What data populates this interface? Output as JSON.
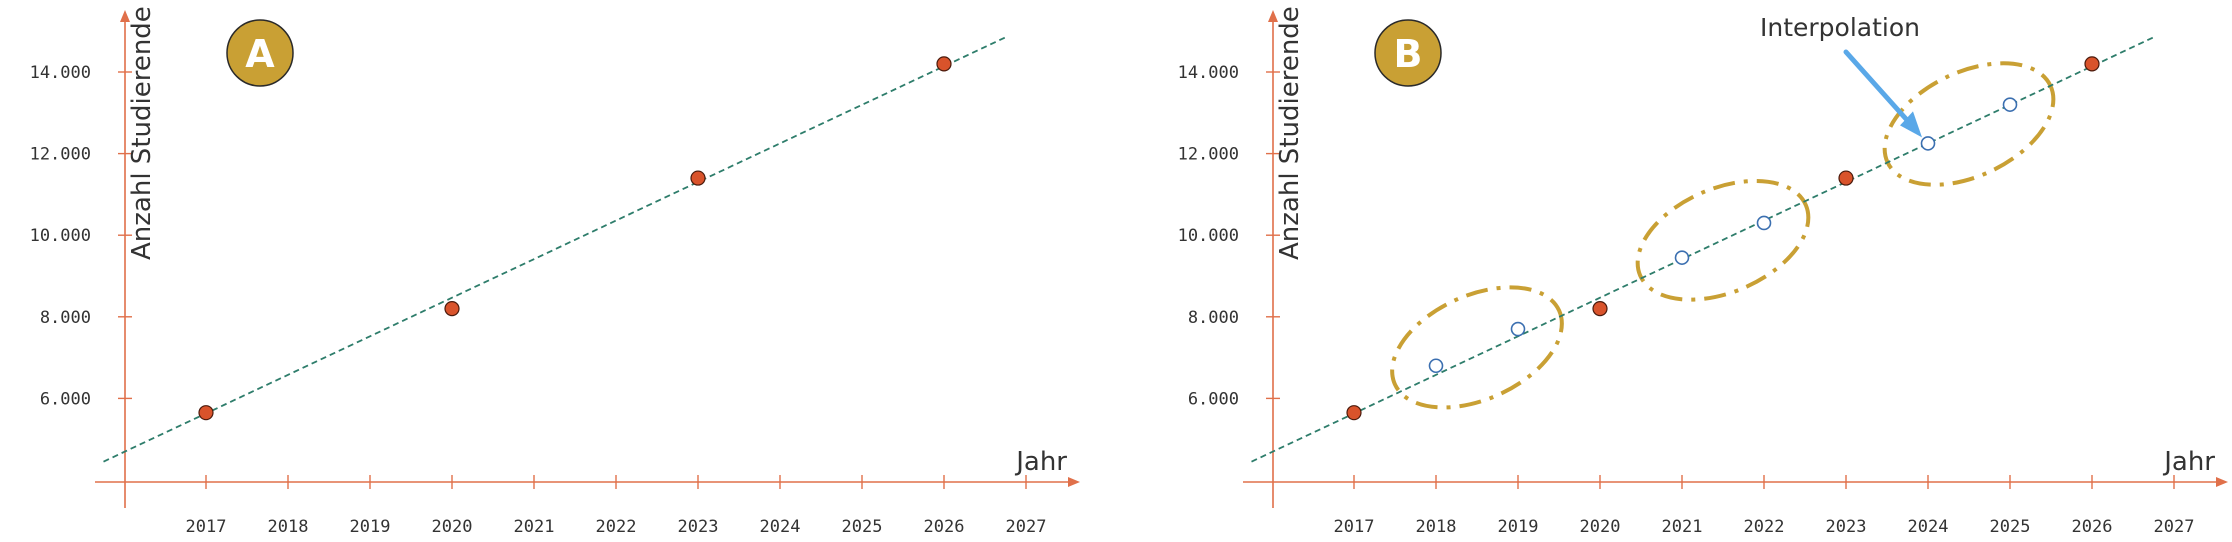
{
  "colors": {
    "axis": "#e0704a",
    "trend": "#2e7d6b",
    "measured": "#d9532b",
    "interpolated": "#3b6fb0",
    "badge": "#c9a034",
    "ellipse": "#c9a034",
    "arrow": "#5aa8e8"
  },
  "chart_data": [
    {
      "type": "scatter",
      "badge": "A",
      "xlabel": "Jahr",
      "ylabel": "Anzahl Studierende",
      "x_ticks": [
        "2017",
        "2018",
        "2019",
        "2020",
        "2021",
        "2022",
        "2023",
        "2024",
        "2025",
        "2026",
        "2027"
      ],
      "y_ticks": [
        "6.000",
        "8.000",
        "10.000",
        "12.000",
        "14.000"
      ],
      "y_tick_values": [
        6000,
        8000,
        10000,
        12000,
        14000
      ],
      "xlim": [
        2016,
        2027.6
      ],
      "ylim": [
        4000,
        15500
      ],
      "trendline": {
        "style": "dashed",
        "x": [
          2015.75,
          2026.75
        ],
        "y": [
          4450,
          14850
        ]
      },
      "series": [
        {
          "x": [
            2017,
            2020,
            2023,
            2026
          ],
          "y": [
            5650,
            8200,
            11400,
            14200
          ]
        }
      ]
    },
    {
      "type": "scatter",
      "badge": "B",
      "xlabel": "Jahr",
      "ylabel": "Anzahl Studierende",
      "annotation": "Interpolation",
      "x_ticks": [
        "2017",
        "2018",
        "2019",
        "2020",
        "2021",
        "2022",
        "2023",
        "2024",
        "2025",
        "2026",
        "2027"
      ],
      "y_ticks": [
        "6.000",
        "8.000",
        "10.000",
        "12.000",
        "14.000"
      ],
      "y_tick_values": [
        6000,
        8000,
        10000,
        12000,
        14000
      ],
      "xlim": [
        2016,
        2027.6
      ],
      "ylim": [
        4000,
        15500
      ],
      "trendline": {
        "style": "dashed",
        "x": [
          2015.75,
          2026.75
        ],
        "y": [
          4450,
          14850
        ]
      },
      "series": [
        {
          "x": [
            2017,
            2020,
            2023,
            2026
          ],
          "y": [
            5650,
            8200,
            11400,
            14200
          ]
        },
        {
          "x": [
            2018,
            2019,
            2021,
            2022,
            2024,
            2025
          ],
          "y": [
            6800,
            7700,
            9450,
            10300,
            12250,
            13200
          ]
        }
      ],
      "highlight_groups": [
        {
          "x": [
            2018,
            2019
          ]
        },
        {
          "x": [
            2021,
            2022
          ]
        },
        {
          "x": [
            2024,
            2025
          ]
        }
      ]
    }
  ]
}
